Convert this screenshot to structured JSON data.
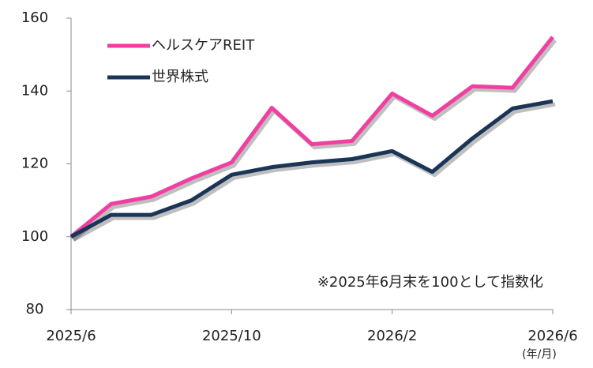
{
  "chart_data": {
    "type": "line",
    "categories": [
      "2025/6",
      null,
      null,
      null,
      "2025/10",
      null,
      null,
      null,
      "2026/2",
      null,
      null,
      null,
      "2026/6"
    ],
    "x_unit_label": "(年/月)",
    "annotation": "※2025年6月末を100として指数化",
    "series": [
      {
        "name": "ヘルスケアREIT",
        "color": "#f03fa0",
        "values": [
          100,
          109,
          111,
          116,
          120.4,
          135.4,
          125.4,
          126.3,
          139.3,
          133.2,
          141.3,
          140.9,
          154.8
        ]
      },
      {
        "name": "世界株式",
        "color": "#1b3557",
        "values": [
          100,
          106,
          106,
          110,
          117,
          119.1,
          120.4,
          121.3,
          123.5,
          117.8,
          127,
          135.2,
          137.2
        ]
      }
    ],
    "ylim": [
      80,
      160
    ],
    "yticks": [
      80,
      100,
      120,
      140,
      160
    ],
    "grid": false,
    "legend": "upper left"
  }
}
